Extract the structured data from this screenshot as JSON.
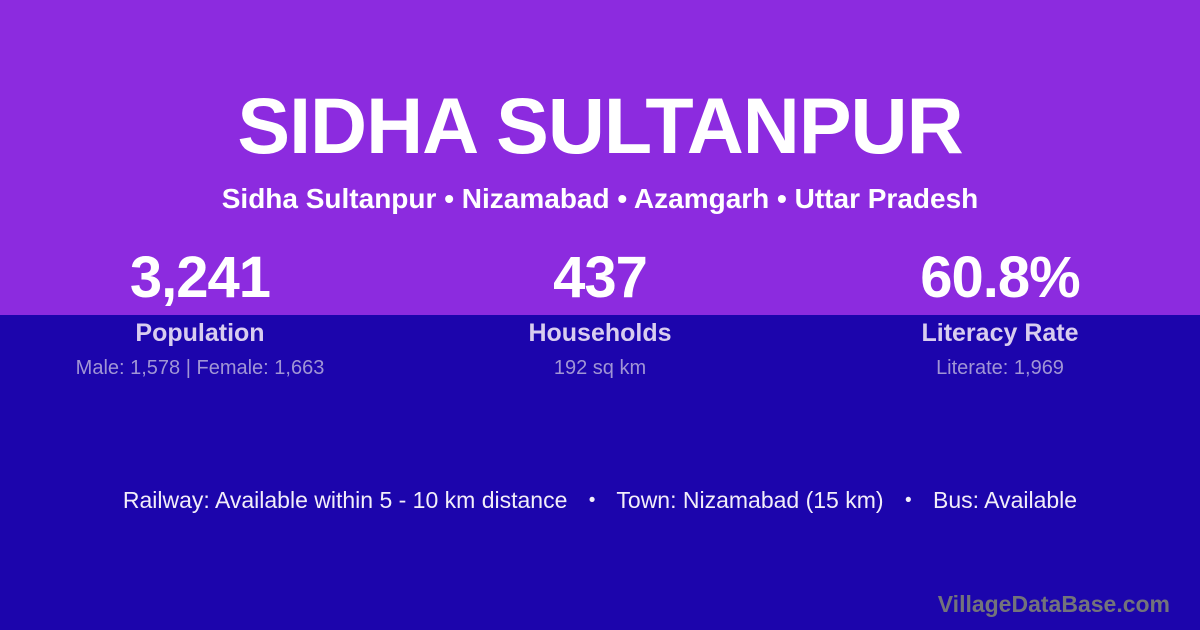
{
  "colors": {
    "top_background": "#8C2BDF",
    "bottom_background": "#1C05AC",
    "title_text": "#FFFFFF",
    "stat_label_text": "#D8CDEF",
    "stat_detail_text": "#A095D5",
    "amenities_text": "#F2EEF9",
    "brand_text": "#73737B"
  },
  "header": {
    "title": "SIDHA SULTANPUR",
    "subtitle": "Sidha Sultanpur • Nizamabad • Azamgarh • Uttar Pradesh"
  },
  "stats": [
    {
      "value": "3,241",
      "label": "Population",
      "detail": "Male: 1,578 | Female: 1,663"
    },
    {
      "value": "437",
      "label": "Households",
      "detail": "192 sq km"
    },
    {
      "value": "60.8%",
      "label": "Literacy Rate",
      "detail": "Literate: 1,969"
    }
  ],
  "amenities": {
    "separator": "•",
    "items": [
      "Railway: Available within 5 - 10 km distance",
      "Town: Nizamabad (15 km)",
      "Bus: Available"
    ]
  },
  "footer": {
    "brand": "VillageDataBase.com"
  }
}
